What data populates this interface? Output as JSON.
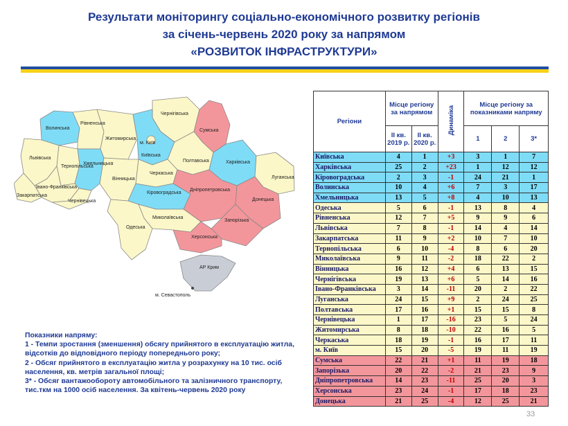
{
  "title": {
    "line1": "Результати моніторингу соціально-економічного розвитку регіонів",
    "line2": "за січень-червень 2020 року за напрямом",
    "line3": "«РОЗВИТОК ІНФРАСТРУКТУРИ»"
  },
  "colors": {
    "blue": "#7fdcf6",
    "yellow": "#fbf7c8",
    "red": "#f3969b",
    "title": "#1f3a93"
  },
  "map": {
    "labels": {
      "volynska": "Волинська",
      "rivnenska": "Рівненська",
      "zhytomyrska": "Житомирська",
      "chernihivska": "Чернігівська",
      "sumska": "Сумська",
      "kyiv": "м. Київ",
      "kyivska": "Київська",
      "poltavska": "Полтавська",
      "kharkivska": "Харківська",
      "luhanska": "Луганська",
      "lvivska": "Львівська",
      "ternopilska": "Тернопільська",
      "khmelnytska": "Хмельницька",
      "vinnytska": "Вінницька",
      "cherkaska": "Черкаська",
      "ivano": "Івано-Франківська",
      "zakarpatska": "Закарпатська",
      "chernivetska": "Чернівецька",
      "kirovohradska": "Кіровоградська",
      "dnipro": "Дніпропетровська",
      "donetska": "Донецька",
      "zaporizka": "Запорізька",
      "mykolaivska": "Миколаївська",
      "odeska": "Одеська",
      "khersonska": "Херсонська",
      "crimea": "АР Крим",
      "sevastopol": "м. Севастополь"
    }
  },
  "legend": {
    "heading": "Показники напряму:",
    "lines": [
      "1 - Темпи зростання (зменшення) обсягу прийнятого в експлуатацію житла,",
      "відсотків до відповідного періоду попереднього року;",
      "2 - Обсяг прийнятого в експлуатацію житла у розрахунку на 10 тис. осіб",
      "населення, кв. метрів загальної площі;",
      "3* - Обсяг вантажообороту автомобільного та залізничного транспорту,",
      "тис.ткм на 1000 осіб населення. За квітень-червень 2020 року"
    ]
  },
  "table": {
    "headers": {
      "regions": "Регіони",
      "place": "Місце регіону за напрямом",
      "q2019": "ІІ кв. 2019 р.",
      "q2020": "ІІ кв. 2020 р.",
      "dynamics": "Динаміка",
      "indicators": "Місце регіону за показниками напряму",
      "i1": "1",
      "i2": "2",
      "i3": "3*"
    },
    "rows": [
      {
        "name": "Київська",
        "q2019": "4",
        "q2020": "1",
        "dyn": "+3",
        "i1": "3",
        "i2": "1",
        "i3": "7",
        "color": "blue"
      },
      {
        "name": "Харківська",
        "q2019": "25",
        "q2020": "2",
        "dyn": "+23",
        "i1": "1",
        "i2": "12",
        "i3": "12",
        "color": "blue"
      },
      {
        "name": "Кіровоградська",
        "q2019": "2",
        "q2020": "3",
        "dyn": "-1",
        "i1": "24",
        "i2": "21",
        "i3": "1",
        "color": "blue"
      },
      {
        "name": "Волинська",
        "q2019": "10",
        "q2020": "4",
        "dyn": "+6",
        "i1": "7",
        "i2": "3",
        "i3": "17",
        "color": "blue"
      },
      {
        "name": "Хмельницька",
        "q2019": "13",
        "q2020": "5",
        "dyn": "+8",
        "i1": "4",
        "i2": "10",
        "i3": "13",
        "color": "blue"
      },
      {
        "name": "Одеська",
        "q2019": "5",
        "q2020": "6",
        "dyn": "-1",
        "i1": "13",
        "i2": "8",
        "i3": "4",
        "color": "yellow"
      },
      {
        "name": "Рівненська",
        "q2019": "12",
        "q2020": "7",
        "dyn": "+5",
        "i1": "9",
        "i2": "9",
        "i3": "6",
        "color": "yellow"
      },
      {
        "name": "Львівська",
        "q2019": "7",
        "q2020": "8",
        "dyn": "-1",
        "i1": "14",
        "i2": "4",
        "i3": "14",
        "color": "yellow"
      },
      {
        "name": "Закарпатська",
        "q2019": "11",
        "q2020": "9",
        "dyn": "+2",
        "i1": "10",
        "i2": "7",
        "i3": "10",
        "color": "yellow"
      },
      {
        "name": "Тернопільська",
        "q2019": "6",
        "q2020": "10",
        "dyn": "-4",
        "i1": "8",
        "i2": "6",
        "i3": "20",
        "color": "yellow"
      },
      {
        "name": "Миколаївська",
        "q2019": "9",
        "q2020": "11",
        "dyn": "-2",
        "i1": "18",
        "i2": "22",
        "i3": "2",
        "color": "yellow"
      },
      {
        "name": "Вінницька",
        "q2019": "16",
        "q2020": "12",
        "dyn": "+4",
        "i1": "6",
        "i2": "13",
        "i3": "15",
        "color": "yellow"
      },
      {
        "name": "Чернігівська",
        "q2019": "19",
        "q2020": "13",
        "dyn": "+6",
        "i1": "5",
        "i2": "14",
        "i3": "16",
        "color": "yellow"
      },
      {
        "name": "Івано-Франківська",
        "q2019": "3",
        "q2020": "14",
        "dyn": "-11",
        "i1": "20",
        "i2": "2",
        "i3": "22",
        "color": "yellow"
      },
      {
        "name": "Луганська",
        "q2019": "24",
        "q2020": "15",
        "dyn": "+9",
        "i1": "2",
        "i2": "24",
        "i3": "25",
        "color": "yellow"
      },
      {
        "name": "Полтавська",
        "q2019": "17",
        "q2020": "16",
        "dyn": "+1",
        "i1": "15",
        "i2": "15",
        "i3": "8",
        "color": "yellow"
      },
      {
        "name": "Чернівецька",
        "q2019": "1",
        "q2020": "17",
        "dyn": "-16",
        "i1": "23",
        "i2": "5",
        "i3": "24",
        "color": "yellow"
      },
      {
        "name": "Житомирська",
        "q2019": "8",
        "q2020": "18",
        "dyn": "-10",
        "i1": "22",
        "i2": "16",
        "i3": "5",
        "color": "yellow"
      },
      {
        "name": "Черкаська",
        "q2019": "18",
        "q2020": "19",
        "dyn": "-1",
        "i1": "16",
        "i2": "17",
        "i3": "11",
        "color": "yellow"
      },
      {
        "name": "м. Київ",
        "q2019": "15",
        "q2020": "20",
        "dyn": "-5",
        "i1": "19",
        "i2": "11",
        "i3": "19",
        "color": "yellow"
      },
      {
        "name": "Сумська",
        "q2019": "22",
        "q2020": "21",
        "dyn": "+1",
        "i1": "11",
        "i2": "19",
        "i3": "18",
        "color": "red"
      },
      {
        "name": "Запорізька",
        "q2019": "20",
        "q2020": "22",
        "dyn": "-2",
        "i1": "21",
        "i2": "23",
        "i3": "9",
        "color": "red"
      },
      {
        "name": "Дніпропетровська",
        "q2019": "14",
        "q2020": "23",
        "dyn": "-11",
        "i1": "25",
        "i2": "20",
        "i3": "3",
        "color": "red"
      },
      {
        "name": "Херсонська",
        "q2019": "23",
        "q2020": "24",
        "dyn": "-1",
        "i1": "17",
        "i2": "18",
        "i3": "23",
        "color": "red"
      },
      {
        "name": "Донецька",
        "q2019": "21",
        "q2020": "25",
        "dyn": "-4",
        "i1": "12",
        "i2": "25",
        "i3": "21",
        "color": "red"
      }
    ]
  },
  "page_number": "33"
}
